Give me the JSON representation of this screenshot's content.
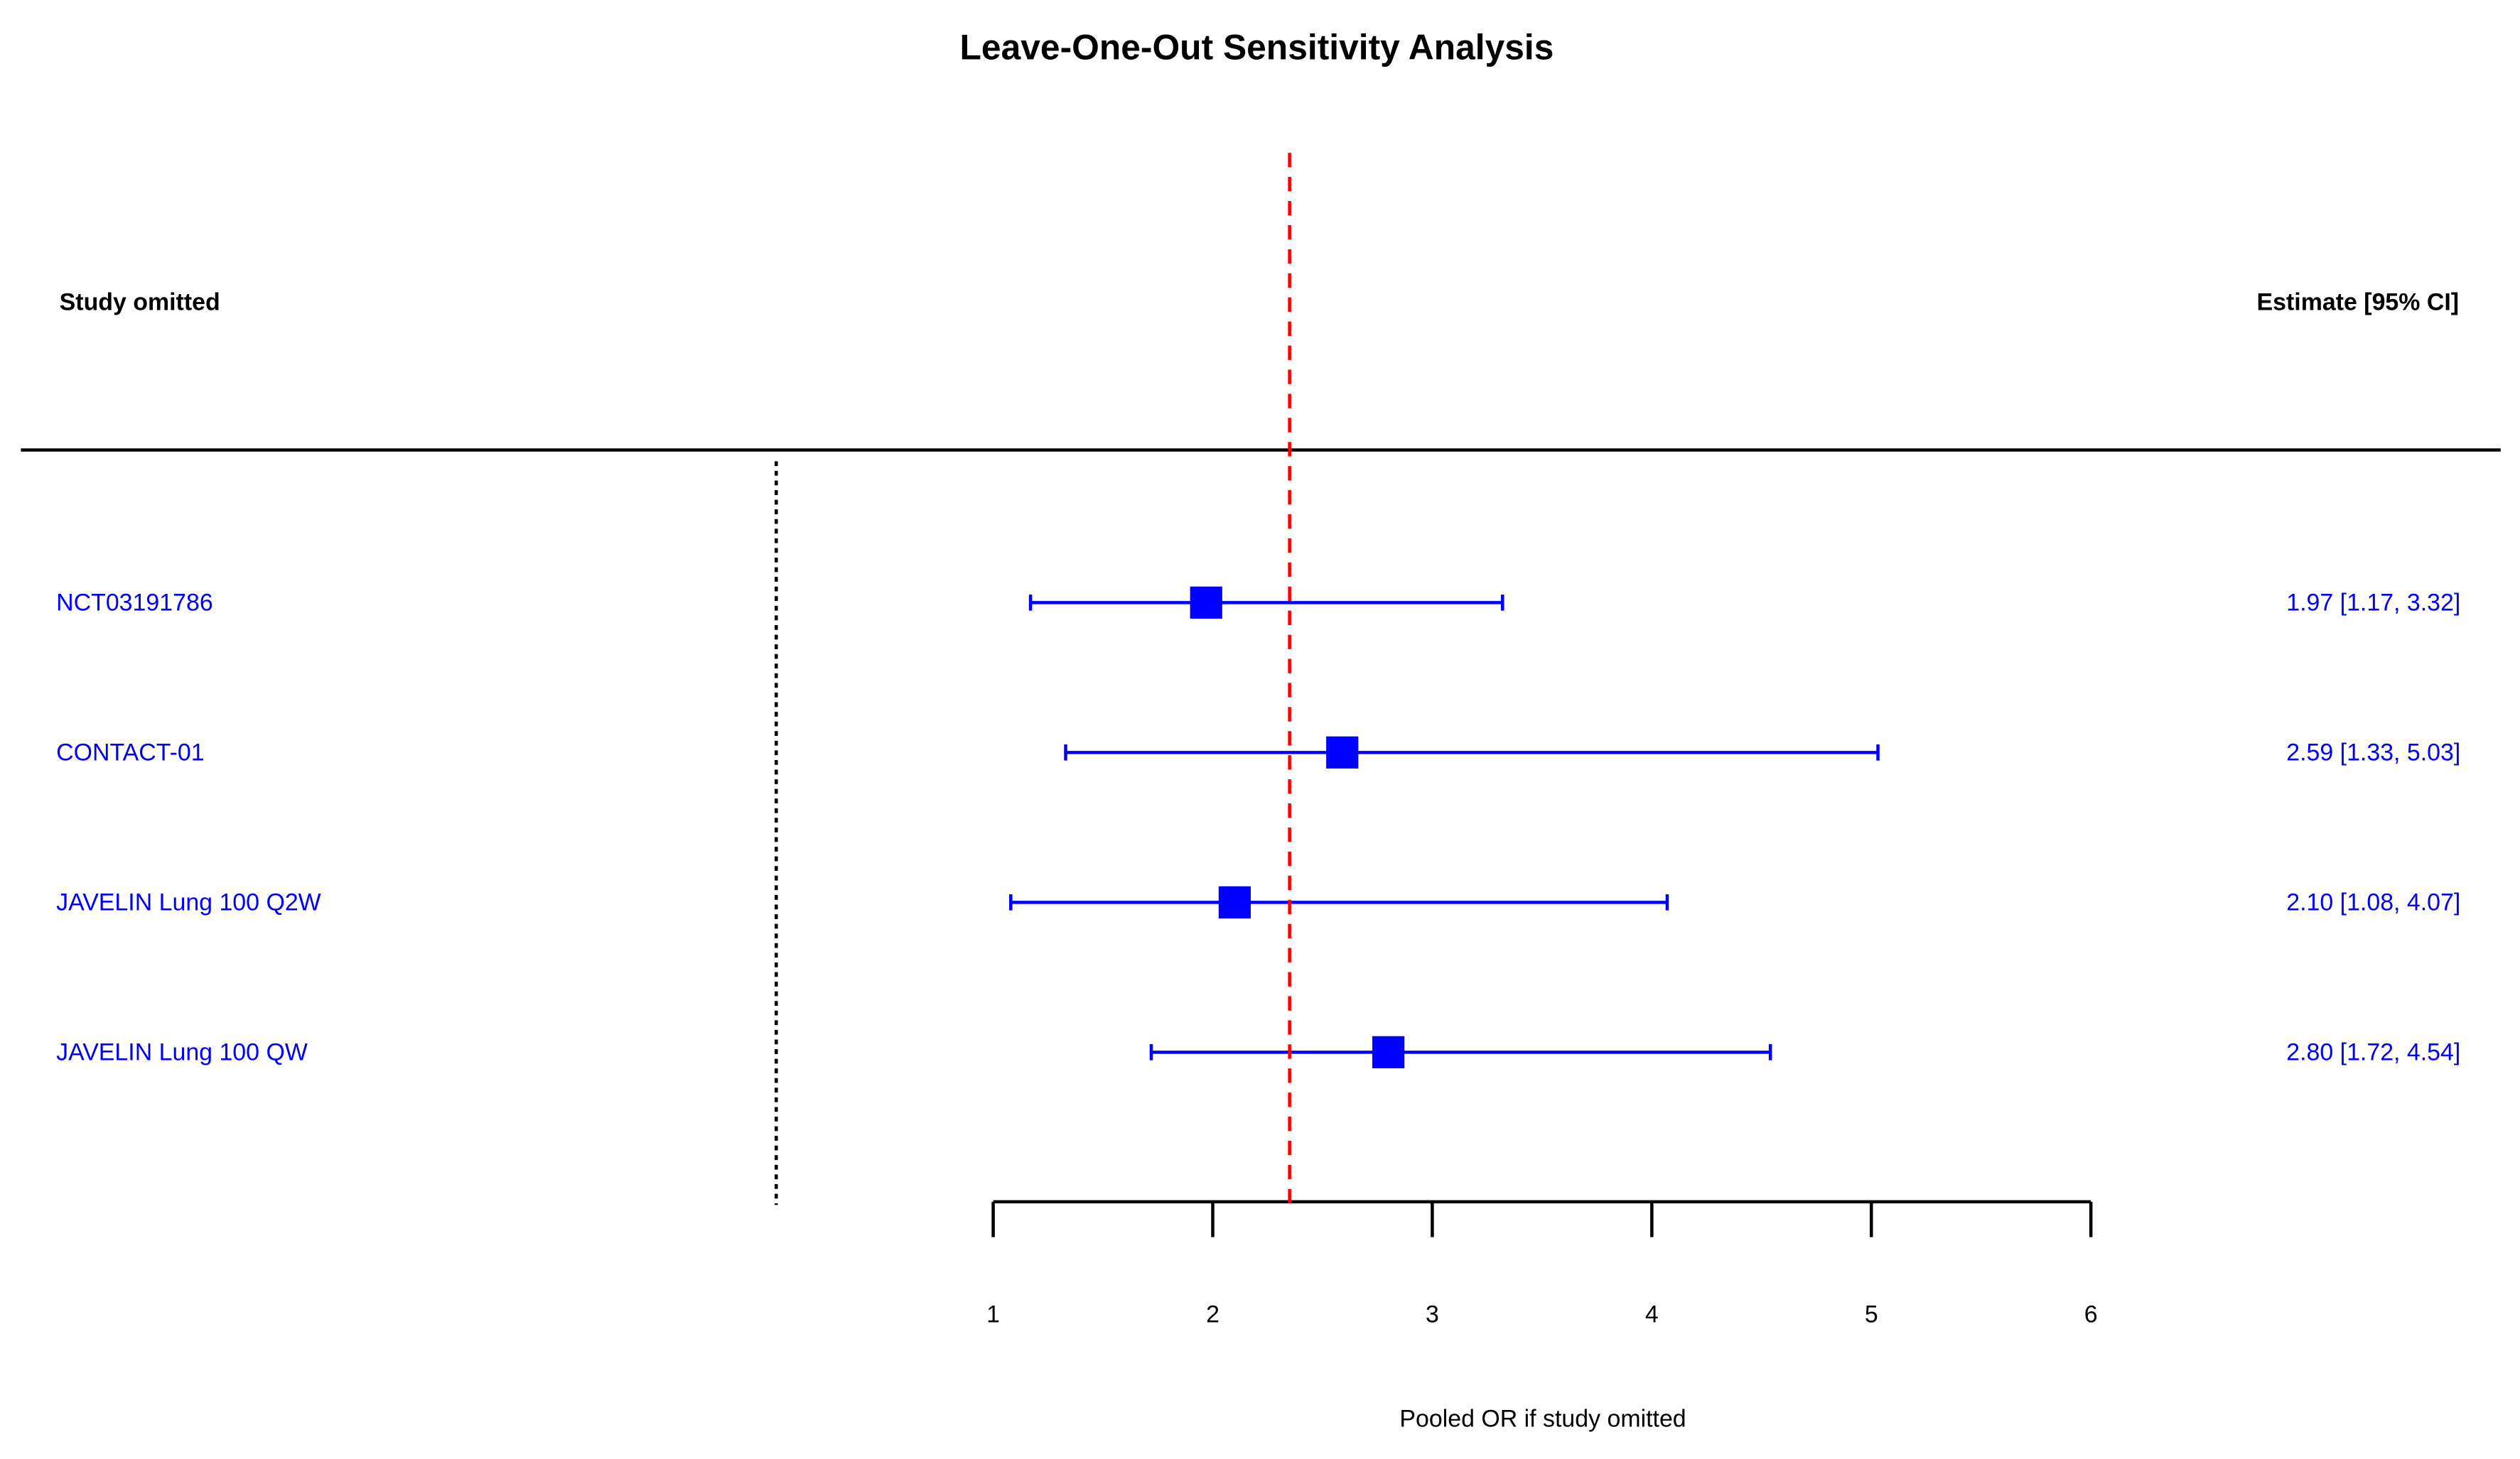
{
  "chart_data": {
    "type": "forest",
    "title": "Leave-One-Out Sensitivity Analysis",
    "left_header": "Study omitted",
    "right_header": "Estimate [95% CI]",
    "x_label": "Pooled OR if study omitted",
    "categories": [
      "NCT03191786",
      "CONTACT-01",
      "JAVELIN Lung 100 Q2W",
      "JAVELIN Lung 100 QW"
    ],
    "values": [
      1.97,
      2.59,
      2.1,
      2.8
    ],
    "lower": [
      1.17,
      1.33,
      1.08,
      1.72
    ],
    "upper": [
      3.32,
      5.03,
      4.07,
      4.54
    ],
    "value_labels": [
      "1.97 [1.17, 3.32]",
      "2.59 [1.33, 5.03]",
      "2.10 [1.08, 4.07]",
      "2.80 [1.72, 4.54]"
    ],
    "color": "#0000ff",
    "reference_line": 2.35,
    "reference_color": "#ff0000",
    "xlim": [
      1,
      6
    ],
    "xticks": [
      1,
      2,
      3,
      4,
      5,
      6
    ]
  }
}
